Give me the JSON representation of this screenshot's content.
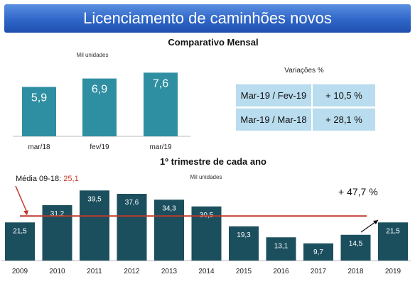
{
  "banner": {
    "title": "Licenciamento de caminhões novos"
  },
  "monthly": {
    "title": "Comparativo Mensal",
    "unit": "Mil unidades"
  },
  "variations": {
    "title": "Variações %",
    "rows": [
      {
        "period": "Mar-19 / Fev-19",
        "value": "+ 10,5 %"
      },
      {
        "period": "Mar-19 / Mar-18",
        "value": "+ 28,1 %"
      }
    ]
  },
  "quarter": {
    "title": "1º trimestre de cada ano",
    "unit": "Mil unidades",
    "average_label": "Média 09-18:",
    "average_value": "25,1",
    "growth": "+ 47,7 %"
  },
  "colors": {
    "bar_monthly": "#2f8fa2",
    "bar_annual": "#1b4f5e",
    "average_line": "#c0392b"
  },
  "chart_data": [
    {
      "type": "bar",
      "title": "Comparativo Mensal",
      "ylabel": "Mil unidades",
      "categories": [
        "mar/18",
        "fev/19",
        "mar/19"
      ],
      "values": [
        5.9,
        6.9,
        7.6
      ],
      "labels": [
        "5,9",
        "6,9",
        "7,6"
      ],
      "ylim": [
        0,
        8
      ],
      "grid": false
    },
    {
      "type": "bar",
      "title": "1º trimestre de cada ano",
      "ylabel": "Mil unidades",
      "categories": [
        "2009",
        "2010",
        "2011",
        "2012",
        "2013",
        "2014",
        "2015",
        "2016",
        "2017",
        "2018",
        "2019"
      ],
      "values": [
        21.5,
        31.2,
        39.5,
        37.6,
        34.3,
        30.5,
        19.3,
        13.1,
        9.7,
        14.5,
        21.5
      ],
      "labels": [
        "21,5",
        "31,2",
        "39,5",
        "37,6",
        "34,3",
        "30,5",
        "19,3",
        "13,1",
        "9,7",
        "14,5",
        "21,5"
      ],
      "reference_line": {
        "label": "Média 09-18:",
        "value": 25.1
      },
      "ylim": [
        0,
        40
      ],
      "grid": false
    }
  ]
}
